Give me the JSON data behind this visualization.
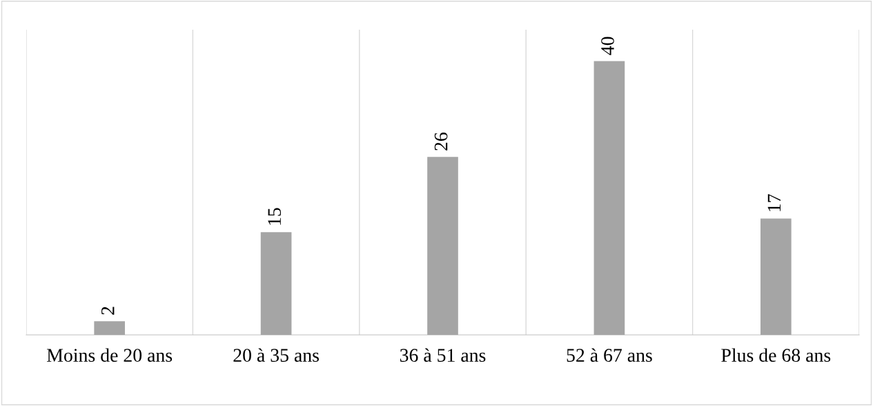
{
  "chart_data": {
    "type": "bar",
    "categories": [
      "Moins de 20 ans",
      "20 à 35 ans",
      "36 à 51 ans",
      "52 à 67 ans",
      "Plus de 68 ans"
    ],
    "values": [
      2,
      15,
      26,
      40,
      17
    ],
    "color": "#a5a5a5",
    "data_labels": true,
    "grid": "x"
  }
}
